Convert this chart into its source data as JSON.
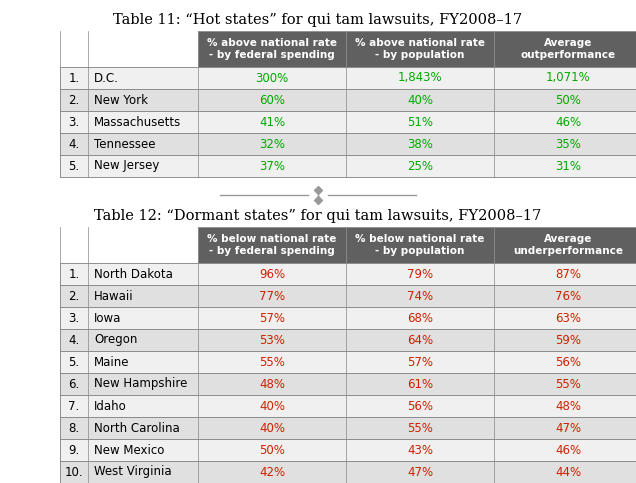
{
  "table11_title": "Table 11: “Hot states” for qui tam lawsuits, FY2008–17",
  "table11_headers": [
    "% above national rate\n- by federal spending",
    "% above national rate\n- by population",
    "Average\noutperformance"
  ],
  "table11_rows": [
    [
      "1.",
      "D.C.",
      "300%",
      "1,843%",
      "1,071%"
    ],
    [
      "2.",
      "New York",
      "60%",
      "40%",
      "50%"
    ],
    [
      "3.",
      "Massachusetts",
      "41%",
      "51%",
      "46%"
    ],
    [
      "4.",
      "Tennessee",
      "32%",
      "38%",
      "35%"
    ],
    [
      "5.",
      "New Jersey",
      "37%",
      "25%",
      "31%"
    ]
  ],
  "table12_title": "Table 12: “Dormant states” for qui tam lawsuits, FY2008–17",
  "table12_headers": [
    "% below national rate\n- by federal spending",
    "% below national rate\n- by population",
    "Average\nunderperformance"
  ],
  "table12_rows": [
    [
      "1.",
      "North Dakota",
      "96%",
      "79%",
      "87%"
    ],
    [
      "2.",
      "Hawaii",
      "77%",
      "74%",
      "76%"
    ],
    [
      "3.",
      "Iowa",
      "57%",
      "68%",
      "63%"
    ],
    [
      "4.",
      "Oregon",
      "53%",
      "64%",
      "59%"
    ],
    [
      "5.",
      "Maine",
      "55%",
      "57%",
      "56%"
    ],
    [
      "6.",
      "New Hampshire",
      "48%",
      "61%",
      "55%"
    ],
    [
      "7.",
      "Idaho",
      "40%",
      "56%",
      "48%"
    ],
    [
      "8.",
      "North Carolina",
      "40%",
      "55%",
      "47%"
    ],
    [
      "9.",
      "New Mexico",
      "50%",
      "43%",
      "46%"
    ],
    [
      "10.",
      "West Virginia",
      "42%",
      "47%",
      "44%"
    ]
  ],
  "header_bg": "#606060",
  "header_fg": "#ffffff",
  "row_bg_alt1": "#f0f0f0",
  "row_bg_alt2": "#e0e0e0",
  "hot_color": "#00aa00",
  "dormant_color": "#cc2200",
  "border_color": "#888888",
  "bg_color": "#ffffff",
  "title_color": "#000000"
}
